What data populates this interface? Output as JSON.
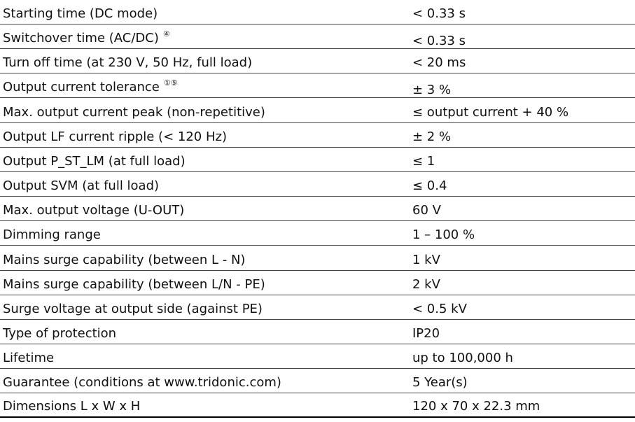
{
  "table": {
    "rows": [
      {
        "label": "Starting time (DC mode)",
        "value": "< 0.33 s"
      },
      {
        "label": "Switchover time (AC/DC)",
        "note": "④",
        "value": "< 0.33 s"
      },
      {
        "label": "Turn off time (at 230 V, 50 Hz, full load)",
        "value": "< 20 ms"
      },
      {
        "label": "Output current tolerance",
        "note": "①⑤",
        "value": "± 3 %"
      },
      {
        "label": "Max. output current peak (non-repetitive)",
        "value": "≤ output current + 40 %"
      },
      {
        "label": "Output LF current ripple (< 120 Hz)",
        "value": "± 2 %"
      },
      {
        "label": "Output P_ST_LM (at full load)",
        "value": "≤ 1"
      },
      {
        "label": "Output SVM (at full load)",
        "value": "≤ 0.4"
      },
      {
        "label": "Max. output voltage (U-OUT)",
        "value": "60 V"
      },
      {
        "label": "Dimming range",
        "value": "1 – 100 %"
      },
      {
        "label": "Mains surge capability (between L - N)",
        "value": "1 kV"
      },
      {
        "label": "Mains surge capability (between L/N - PE)",
        "value": "2 kV"
      },
      {
        "label": "Surge voltage at output side (against PE)",
        "value": "< 0.5 kV"
      },
      {
        "label": "Type of protection",
        "value": "IP20"
      },
      {
        "label": "Lifetime",
        "value": "up to 100,000 h"
      },
      {
        "label": "Guarantee (conditions at www.tridonic.com)",
        "value": "5 Year(s)"
      },
      {
        "label": "Dimensions L x W x H",
        "value": "120 x 70 x 22.3 mm"
      }
    ]
  }
}
